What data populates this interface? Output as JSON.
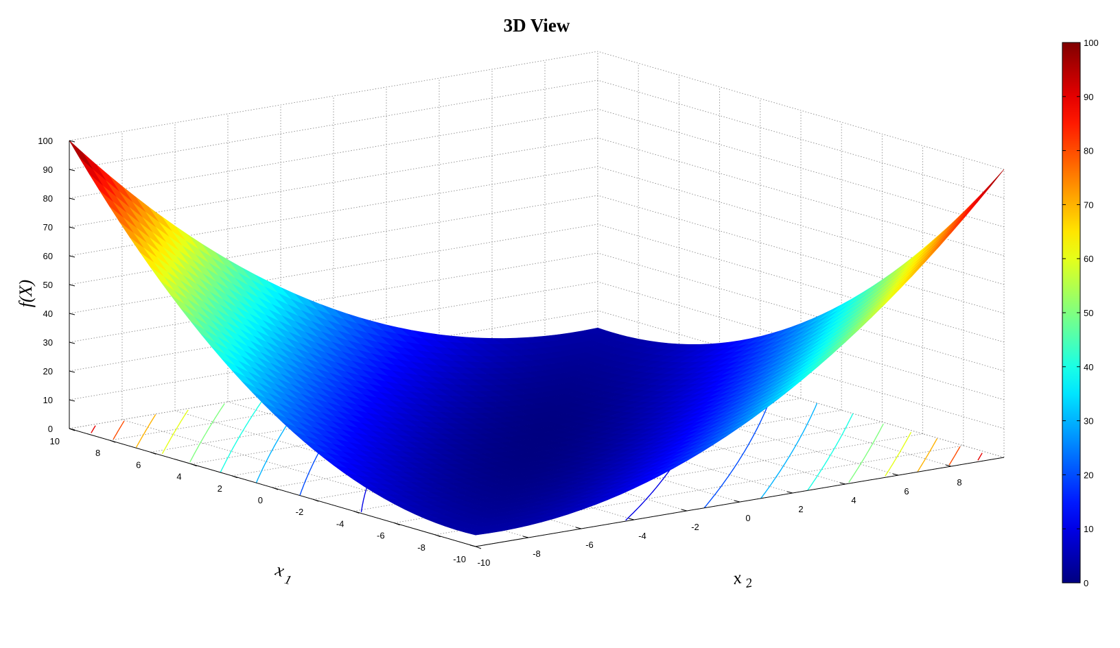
{
  "chart_data": {
    "type": "surface3d",
    "title": "3D View",
    "xlabel": "x_1",
    "ylabel": "x_2",
    "zlabel": "f(X)",
    "x": {
      "min": -10,
      "max": 10,
      "ticks": [
        -10,
        -8,
        -6,
        -4,
        -2,
        0,
        2,
        4,
        6,
        8,
        10
      ],
      "tick_labels": [
        "-10",
        "-8",
        "-6",
        "-4",
        "-2",
        "0",
        "2",
        "4",
        "6",
        "8",
        "10"
      ]
    },
    "y": {
      "min": -10,
      "max": 10,
      "ticks": [
        -10,
        -8,
        -6,
        -4,
        -2,
        0,
        2,
        4,
        6,
        8
      ],
      "tick_labels": [
        "-10",
        "-8",
        "-6",
        "-4",
        "-2",
        "0",
        "2",
        "4",
        "6",
        "8"
      ]
    },
    "z": {
      "min": 0,
      "max": 100,
      "ticks": [
        0,
        10,
        20,
        30,
        40,
        50,
        60,
        70,
        80,
        90,
        100
      ],
      "tick_labels": [
        "0",
        "10",
        "20",
        "30",
        "40",
        "50",
        "60",
        "70",
        "80",
        "90",
        "100"
      ]
    },
    "surface": {
      "description_function": "f(X) = 0.26*(x1^2 + x2^2) - 0.48*x1*x2",
      "grid_points": 41,
      "colormap": "jet",
      "sample_values": [
        {
          "x1": 10,
          "x2": -10,
          "f": 100
        },
        {
          "x1": -10,
          "x2": 10,
          "f": 100
        },
        {
          "x1": 10,
          "x2": 10,
          "f": 4
        },
        {
          "x1": -10,
          "x2": -10,
          "f": 4
        },
        {
          "x1": 0,
          "x2": 0,
          "f": 0
        }
      ]
    },
    "contour_levels": [
      10,
      20,
      30,
      40,
      50,
      60,
      70,
      80,
      90
    ],
    "colorbar": {
      "min": 0,
      "max": 100,
      "tick_labels": [
        "0",
        "10",
        "20",
        "30",
        "40",
        "50",
        "60",
        "70",
        "80",
        "90",
        "100"
      ]
    },
    "grid": true
  }
}
